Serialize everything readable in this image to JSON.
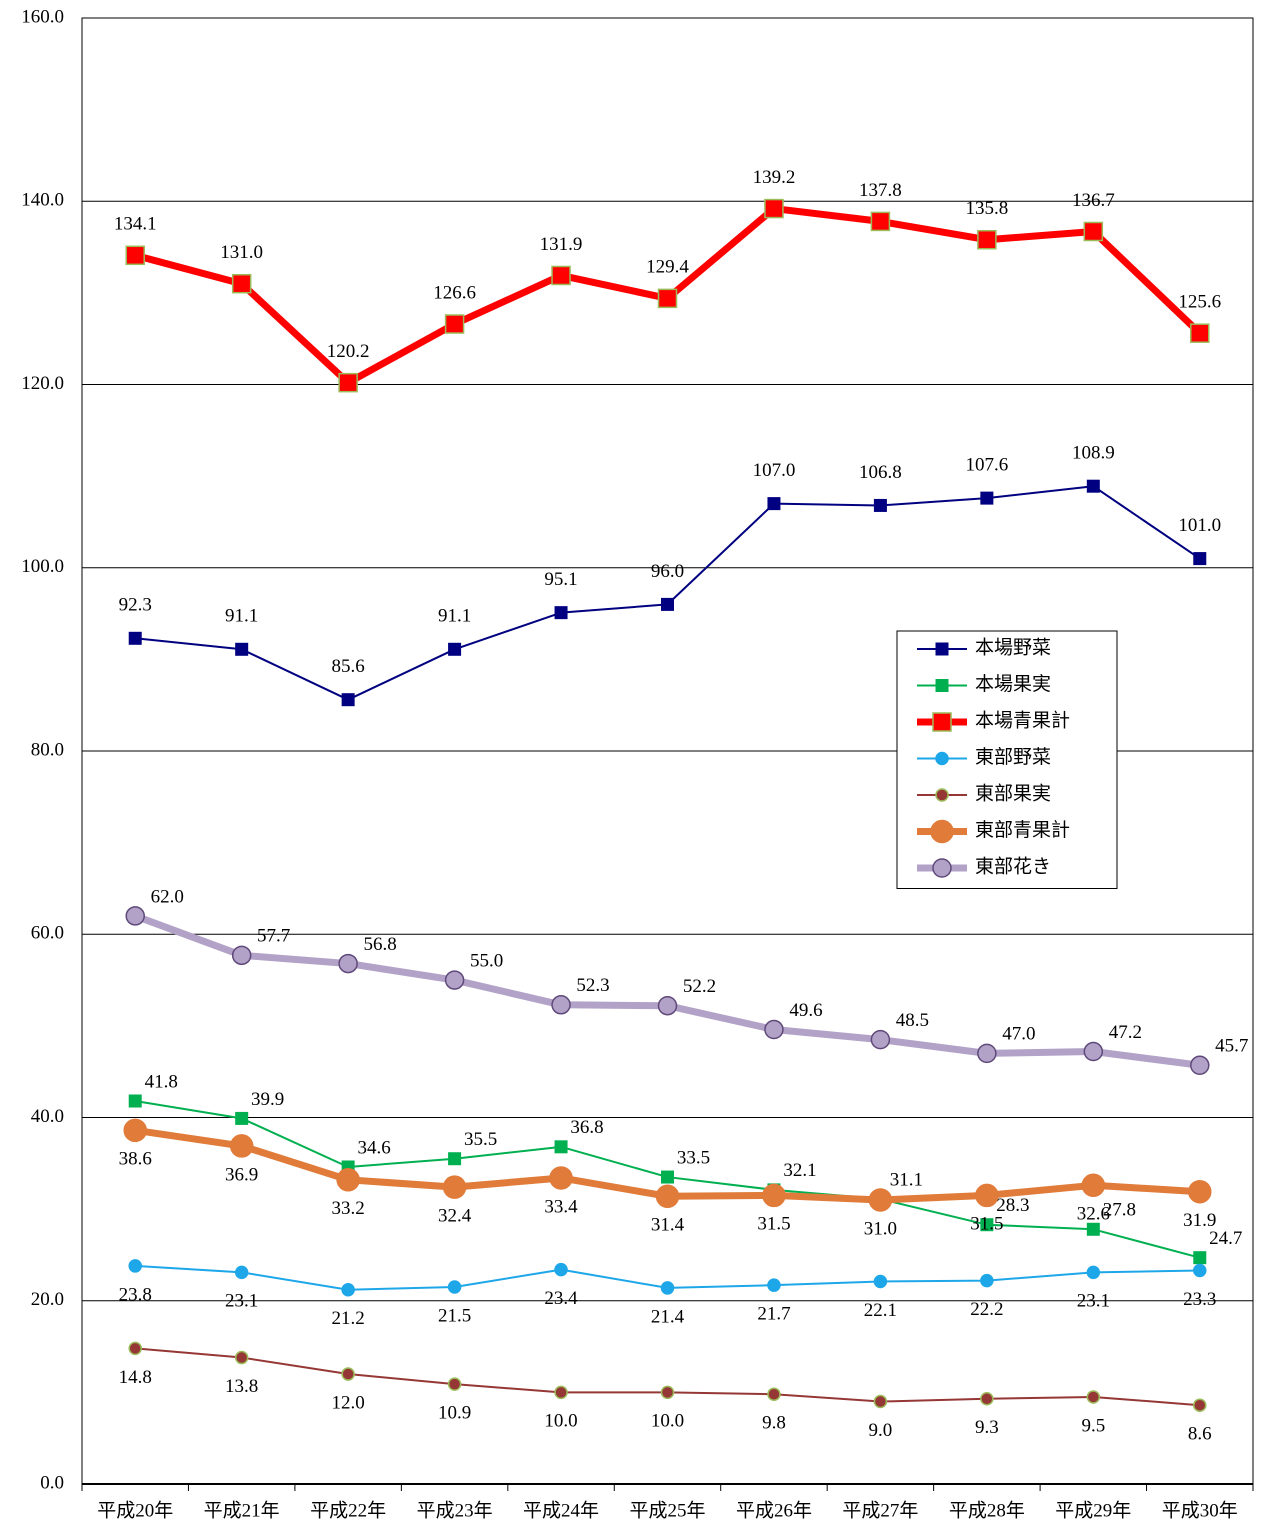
{
  "chart_data": {
    "type": "line",
    "categories": [
      "平成20年",
      "平成21年",
      "平成22年",
      "平成23年",
      "平成24年",
      "平成25年",
      "平成26年",
      "平成27年",
      "平成28年",
      "平成29年",
      "平成30年"
    ],
    "ylim": [
      0,
      160
    ],
    "yticks": [
      {
        "value": 0,
        "label": "0.0"
      },
      {
        "value": 20,
        "label": "20.0"
      },
      {
        "value": 40,
        "label": "40.0"
      },
      {
        "value": 60,
        "label": "60.0"
      },
      {
        "value": 80,
        "label": "80.0"
      },
      {
        "value": 100,
        "label": "100.0"
      },
      {
        "value": 120,
        "label": "120.0"
      },
      {
        "value": 140,
        "label": "140.0"
      },
      {
        "value": 160,
        "label": "160.0"
      }
    ],
    "grid": true,
    "legend_position": "right",
    "series": [
      {
        "name": "本場野菜",
        "color": "#000080",
        "marker": "square",
        "width": 2,
        "values": [
          92.3,
          91.1,
          85.6,
          91.1,
          95.1,
          96.0,
          107.0,
          106.8,
          107.6,
          108.9,
          101.0
        ],
        "value_labels": [
          "92.3",
          "91.1",
          "85.6",
          "91.1",
          "95.1",
          "96.0",
          "107.0",
          "106.8",
          "107.6",
          "108.9",
          "101.0"
        ]
      },
      {
        "name": "本場果実",
        "color": "#00b050",
        "marker": "square",
        "width": 2,
        "values": [
          41.8,
          39.9,
          34.6,
          35.5,
          36.8,
          33.5,
          32.1,
          31.1,
          28.3,
          27.8,
          24.7
        ],
        "value_labels": [
          "41.8",
          "39.9",
          "34.6",
          "35.5",
          "36.8",
          "33.5",
          "32.1",
          "31.1",
          "28.3",
          "27.8",
          "24.7"
        ]
      },
      {
        "name": "本場青果計",
        "color": "#ff0000",
        "marker": "square",
        "width": 7,
        "values": [
          134.1,
          131.0,
          120.2,
          126.6,
          131.9,
          129.4,
          139.2,
          137.8,
          135.8,
          136.7,
          125.6
        ],
        "value_labels": [
          "134.1",
          "131.0",
          "120.2",
          "126.6",
          "131.9",
          "129.4",
          "139.2",
          "137.8",
          "135.8",
          "136.7",
          "125.6"
        ]
      },
      {
        "name": "東部野菜",
        "color": "#1ea7e8",
        "marker": "circle",
        "width": 2,
        "values": [
          23.8,
          23.1,
          21.2,
          21.5,
          23.4,
          21.4,
          21.7,
          22.1,
          22.2,
          23.1,
          23.3
        ],
        "value_labels": [
          "23.8",
          "23.1",
          "21.2",
          "21.5",
          "23.4",
          "21.4",
          "21.7",
          "22.1",
          "22.2",
          "23.1",
          "23.3"
        ]
      },
      {
        "name": "東部果実",
        "color": "#953735",
        "marker": "circle",
        "width": 2,
        "values": [
          14.8,
          13.8,
          12.0,
          10.9,
          10.0,
          10.0,
          9.8,
          9.0,
          9.3,
          9.5,
          8.6
        ],
        "value_labels": [
          "14.8",
          "13.8",
          "12.0",
          "10.9",
          "10.0",
          "10.0",
          "9.8",
          "9.0",
          "9.3",
          "9.5",
          "8.6"
        ]
      },
      {
        "name": "東部青果計",
        "color": "#e07b39",
        "marker": "circle",
        "width": 7,
        "values": [
          38.6,
          36.9,
          33.2,
          32.4,
          33.4,
          31.4,
          31.5,
          31.0,
          31.5,
          32.6,
          31.9
        ],
        "value_labels": [
          "38.6",
          "36.9",
          "33.2",
          "32.4",
          "33.4",
          "31.4",
          "31.5",
          "31.0",
          "31.5",
          "32.6",
          "31.9"
        ]
      },
      {
        "name": "東部花き",
        "color": "#b3a2c7",
        "marker": "circle",
        "width": 7,
        "values": [
          62.0,
          57.7,
          56.8,
          55.0,
          52.3,
          52.2,
          49.6,
          48.5,
          47.0,
          47.2,
          45.7
        ],
        "value_labels": [
          "62.0",
          "57.7",
          "56.8",
          "55.0",
          "52.3",
          "52.2",
          "49.6",
          "48.5",
          "47.0",
          "47.2",
          "45.7"
        ]
      }
    ]
  }
}
